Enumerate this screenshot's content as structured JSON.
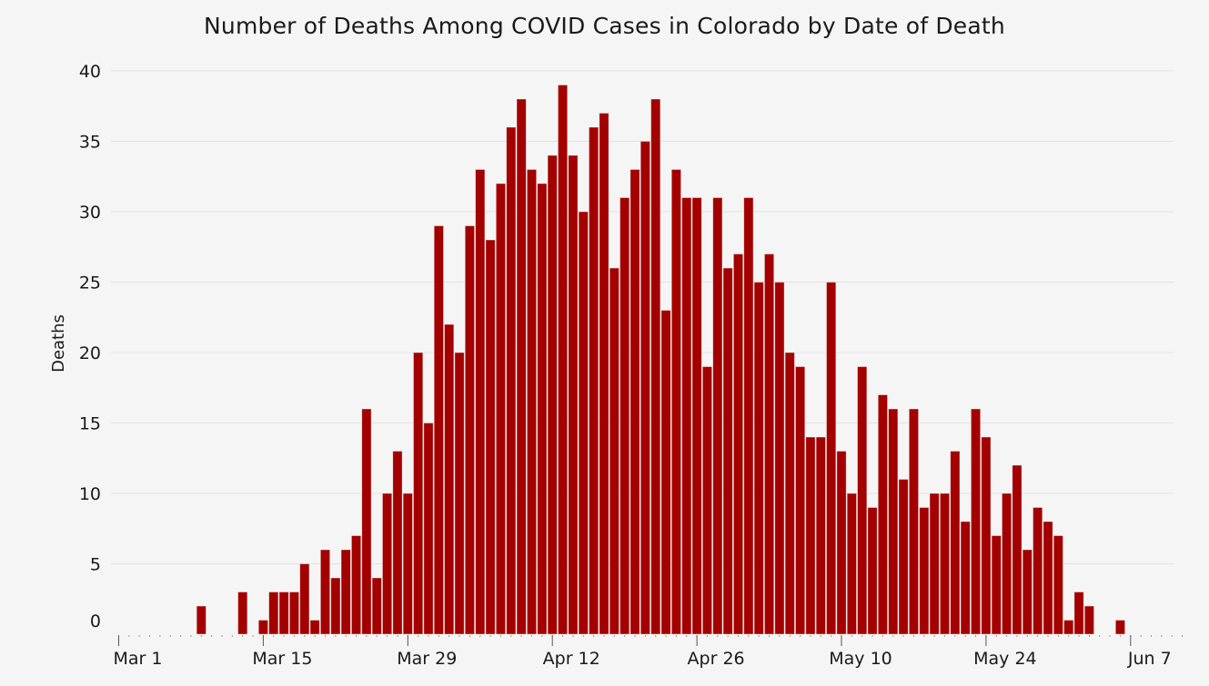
{
  "chart_data": {
    "type": "bar",
    "title": "Number of Deaths Among COVID Cases in Colorado by Date of Death",
    "xlabel": "",
    "ylabel": "Deaths",
    "ylim": [
      0,
      40
    ],
    "y_ticks": [
      0,
      5,
      10,
      15,
      20,
      25,
      30,
      35,
      40
    ],
    "x_start_date": "2020-03-01",
    "x_end_date": "2020-06-12",
    "x_tick_labels": [
      {
        "date": "2020-03-01",
        "label": "Mar 1"
      },
      {
        "date": "2020-03-15",
        "label": "Mar 15"
      },
      {
        "date": "2020-03-29",
        "label": "Mar 29"
      },
      {
        "date": "2020-04-12",
        "label": "Apr 12"
      },
      {
        "date": "2020-04-26",
        "label": "Apr 26"
      },
      {
        "date": "2020-05-10",
        "label": "May 10"
      },
      {
        "date": "2020-05-24",
        "label": "May 24"
      },
      {
        "date": "2020-06-07",
        "label": "Jun 7"
      }
    ],
    "grid": true,
    "bar_color": "#a30000",
    "series": [
      {
        "data": [
          {
            "x": "2020-03-09",
            "y": 2
          },
          {
            "x": "2020-03-13",
            "y": 3
          },
          {
            "x": "2020-03-15",
            "y": 1
          },
          {
            "x": "2020-03-16",
            "y": 3
          },
          {
            "x": "2020-03-17",
            "y": 3
          },
          {
            "x": "2020-03-18",
            "y": 3
          },
          {
            "x": "2020-03-19",
            "y": 5
          },
          {
            "x": "2020-03-20",
            "y": 1
          },
          {
            "x": "2020-03-21",
            "y": 6
          },
          {
            "x": "2020-03-22",
            "y": 4
          },
          {
            "x": "2020-03-23",
            "y": 6
          },
          {
            "x": "2020-03-24",
            "y": 7
          },
          {
            "x": "2020-03-25",
            "y": 16
          },
          {
            "x": "2020-03-26",
            "y": 4
          },
          {
            "x": "2020-03-27",
            "y": 10
          },
          {
            "x": "2020-03-28",
            "y": 13
          },
          {
            "x": "2020-03-29",
            "y": 10
          },
          {
            "x": "2020-03-30",
            "y": 20
          },
          {
            "x": "2020-03-31",
            "y": 15
          },
          {
            "x": "2020-04-01",
            "y": 29
          },
          {
            "x": "2020-04-02",
            "y": 22
          },
          {
            "x": "2020-04-03",
            "y": 20
          },
          {
            "x": "2020-04-04",
            "y": 29
          },
          {
            "x": "2020-04-05",
            "y": 33
          },
          {
            "x": "2020-04-06",
            "y": 28
          },
          {
            "x": "2020-04-07",
            "y": 32
          },
          {
            "x": "2020-04-08",
            "y": 36
          },
          {
            "x": "2020-04-09",
            "y": 38
          },
          {
            "x": "2020-04-10",
            "y": 33
          },
          {
            "x": "2020-04-11",
            "y": 32
          },
          {
            "x": "2020-04-12",
            "y": 34
          },
          {
            "x": "2020-04-13",
            "y": 39
          },
          {
            "x": "2020-04-14",
            "y": 34
          },
          {
            "x": "2020-04-15",
            "y": 30
          },
          {
            "x": "2020-04-16",
            "y": 36
          },
          {
            "x": "2020-04-17",
            "y": 37
          },
          {
            "x": "2020-04-18",
            "y": 26
          },
          {
            "x": "2020-04-19",
            "y": 31
          },
          {
            "x": "2020-04-20",
            "y": 33
          },
          {
            "x": "2020-04-21",
            "y": 35
          },
          {
            "x": "2020-04-22",
            "y": 38
          },
          {
            "x": "2020-04-23",
            "y": 23
          },
          {
            "x": "2020-04-24",
            "y": 33
          },
          {
            "x": "2020-04-25",
            "y": 31
          },
          {
            "x": "2020-04-26",
            "y": 31
          },
          {
            "x": "2020-04-27",
            "y": 19
          },
          {
            "x": "2020-04-28",
            "y": 31
          },
          {
            "x": "2020-04-29",
            "y": 26
          },
          {
            "x": "2020-04-30",
            "y": 27
          },
          {
            "x": "2020-05-01",
            "y": 31
          },
          {
            "x": "2020-05-02",
            "y": 25
          },
          {
            "x": "2020-05-03",
            "y": 27
          },
          {
            "x": "2020-05-04",
            "y": 25
          },
          {
            "x": "2020-05-05",
            "y": 20
          },
          {
            "x": "2020-05-06",
            "y": 19
          },
          {
            "x": "2020-05-07",
            "y": 14
          },
          {
            "x": "2020-05-08",
            "y": 14
          },
          {
            "x": "2020-05-09",
            "y": 25
          },
          {
            "x": "2020-05-10",
            "y": 13
          },
          {
            "x": "2020-05-11",
            "y": 10
          },
          {
            "x": "2020-05-12",
            "y": 19
          },
          {
            "x": "2020-05-13",
            "y": 9
          },
          {
            "x": "2020-05-14",
            "y": 17
          },
          {
            "x": "2020-05-15",
            "y": 16
          },
          {
            "x": "2020-05-16",
            "y": 11
          },
          {
            "x": "2020-05-17",
            "y": 16
          },
          {
            "x": "2020-05-18",
            "y": 9
          },
          {
            "x": "2020-05-19",
            "y": 10
          },
          {
            "x": "2020-05-20",
            "y": 10
          },
          {
            "x": "2020-05-21",
            "y": 13
          },
          {
            "x": "2020-05-22",
            "y": 8
          },
          {
            "x": "2020-05-23",
            "y": 16
          },
          {
            "x": "2020-05-24",
            "y": 14
          },
          {
            "x": "2020-05-25",
            "y": 7
          },
          {
            "x": "2020-05-26",
            "y": 10
          },
          {
            "x": "2020-05-27",
            "y": 12
          },
          {
            "x": "2020-05-28",
            "y": 6
          },
          {
            "x": "2020-05-29",
            "y": 9
          },
          {
            "x": "2020-05-30",
            "y": 8
          },
          {
            "x": "2020-05-31",
            "y": 7
          },
          {
            "x": "2020-06-01",
            "y": 1
          },
          {
            "x": "2020-06-02",
            "y": 3
          },
          {
            "x": "2020-06-03",
            "y": 2
          },
          {
            "x": "2020-06-06",
            "y": 1
          }
        ]
      }
    ]
  }
}
